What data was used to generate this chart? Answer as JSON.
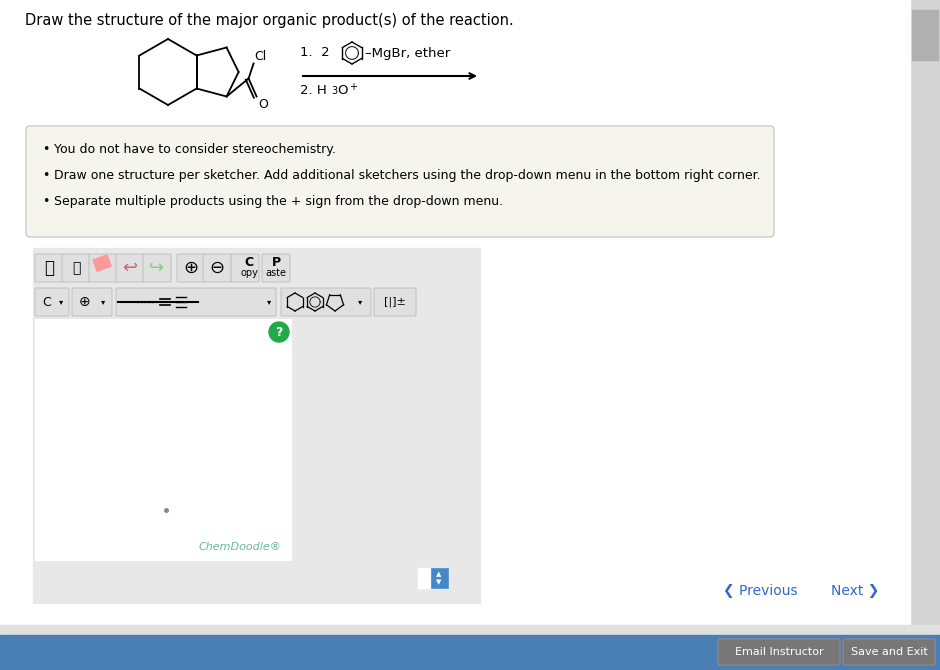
{
  "title": "Draw the structure of the major organic product(s) of the reaction.",
  "title_fontsize": 10.5,
  "page_bg": "#f0f0f0",
  "white_bg": "#ffffff",
  "bullet_box_bg": "#f5f5ee",
  "bullet_box_border": "#cccccc",
  "bullets": [
    "You do not have to consider stereochemistry.",
    "Draw one structure per sketcher. Add additional sketchers using the drop-down menu in the bottom right corner.",
    "Separate multiple products using the + sign from the drop-down menu."
  ],
  "bullet_fontsize": 9,
  "chemdoodle_text": "ChemDoodle®",
  "chemdoodle_color": "#66bb99",
  "nav_prev": "❮ Previous",
  "nav_next": "Next ❯",
  "nav_color": "#3366cc",
  "btn_email": "Email Instructor",
  "btn_save": "Save and Exit",
  "bottom_bar_color": "#4a7fb5",
  "scrollbar_bg": "#d8d8d8",
  "scrollbar_handle": "#b0b0b0",
  "toolbar_bg": "#e8e8e8",
  "icon_bg": "#e0e0e0",
  "icon_border": "#c0c0c0",
  "canvas_border": "#333333",
  "right_gray": "#e8e8e8"
}
